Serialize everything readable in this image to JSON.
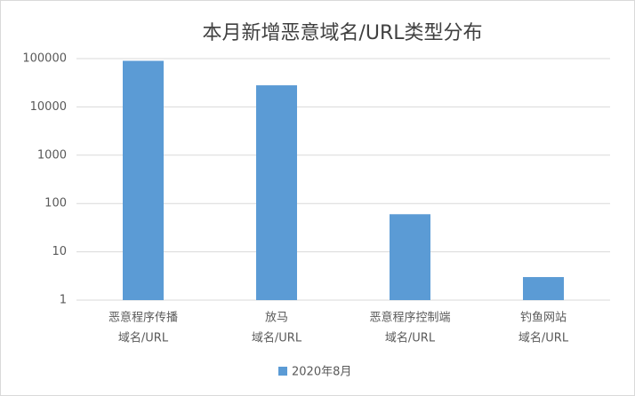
{
  "chart_data": {
    "type": "bar",
    "title": "本月新增恶意域名/URL类型分布",
    "categories": [
      [
        "恶意程序传播",
        "域名/URL"
      ],
      [
        "放马",
        "域名/URL"
      ],
      [
        "恶意程序控制端",
        "域名/URL"
      ],
      [
        "钓鱼网站",
        "域名/URL"
      ]
    ],
    "series": [
      {
        "name": "2020年8月",
        "color": "#5b9bd5",
        "values": [
          90000,
          28000,
          60,
          3
        ]
      }
    ],
    "ylim": [
      1,
      100000
    ],
    "yticks": [
      1,
      10,
      100,
      1000,
      10000,
      100000
    ],
    "log_scale": true,
    "grid": true,
    "legend": "bottom"
  }
}
